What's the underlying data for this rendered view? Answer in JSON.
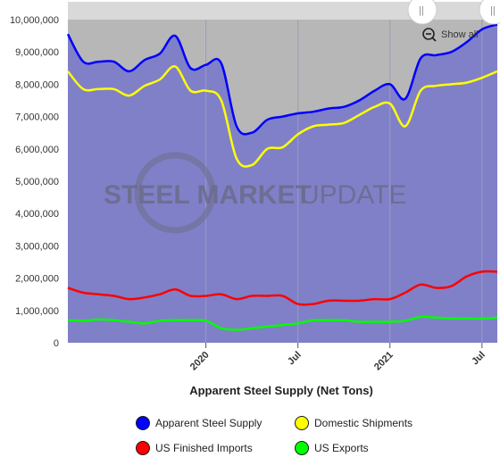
{
  "chart_data": {
    "type": "area",
    "title": "",
    "xlabel": "Apparent Steel Supply (Net Tons)",
    "ylabel": "",
    "ylim": [
      0,
      10000000
    ],
    "y_ticks": [
      "0",
      "1,000,000",
      "2,000,000",
      "3,000,000",
      "4,000,000",
      "5,000,000",
      "6,000,000",
      "7,000,000",
      "8,000,000",
      "9,000,000",
      "10,000,000"
    ],
    "x_ticks": [
      {
        "label": "2020",
        "date": "2020-01"
      },
      {
        "label": "Jul",
        "date": "2020-07"
      },
      {
        "label": "2021",
        "date": "2021-01"
      },
      {
        "label": "Jul",
        "date": "2021-07"
      }
    ],
    "x_range": [
      "2019-04",
      "2021-08"
    ],
    "x": [
      "2019-04",
      "2019-05",
      "2019-06",
      "2019-07",
      "2019-08",
      "2019-09",
      "2019-10",
      "2019-11",
      "2019-12",
      "2020-01",
      "2020-02",
      "2020-03",
      "2020-04",
      "2020-05",
      "2020-06",
      "2020-07",
      "2020-08",
      "2020-09",
      "2020-10",
      "2020-11",
      "2020-12",
      "2021-01",
      "2021-02",
      "2021-03",
      "2021-04",
      "2021-05",
      "2021-06",
      "2021-07",
      "2021-08"
    ],
    "series": [
      {
        "name": "Apparent Steel Supply",
        "color": "#0000ff",
        "values": [
          9550000,
          8700000,
          8700000,
          8700000,
          8400000,
          8750000,
          8950000,
          9500000,
          8500000,
          8600000,
          8650000,
          6700000,
          6500000,
          6900000,
          7000000,
          7100000,
          7150000,
          7250000,
          7300000,
          7500000,
          7800000,
          8000000,
          7550000,
          8800000,
          8900000,
          9000000,
          9300000,
          9700000,
          9850000
        ]
      },
      {
        "name": "Domestic Shipments",
        "color": "#ffff00",
        "values": [
          8400000,
          7850000,
          7850000,
          7850000,
          7650000,
          7950000,
          8150000,
          8550000,
          7800000,
          7800000,
          7500000,
          5700000,
          5500000,
          6000000,
          6050000,
          6450000,
          6700000,
          6750000,
          6800000,
          7050000,
          7300000,
          7400000,
          6700000,
          7800000,
          7950000,
          8000000,
          8050000,
          8200000,
          8400000
        ]
      },
      {
        "name": "US Finished Imports",
        "color": "#ff0000",
        "values": [
          1700000,
          1550000,
          1500000,
          1450000,
          1350000,
          1400000,
          1500000,
          1650000,
          1450000,
          1450000,
          1500000,
          1350000,
          1450000,
          1450000,
          1450000,
          1200000,
          1200000,
          1300000,
          1300000,
          1300000,
          1350000,
          1350000,
          1550000,
          1800000,
          1700000,
          1750000,
          2050000,
          2200000,
          2200000
        ]
      },
      {
        "name": "US Exports",
        "color": "#00ff00",
        "values": [
          700000,
          680000,
          720000,
          700000,
          650000,
          600000,
          680000,
          700000,
          700000,
          680000,
          450000,
          400000,
          450000,
          500000,
          550000,
          600000,
          700000,
          700000,
          700000,
          650000,
          650000,
          650000,
          680000,
          800000,
          780000,
          750000,
          750000,
          750000,
          780000
        ]
      }
    ],
    "legend_placement": "bottom",
    "grid": "vertical",
    "watermark": {
      "bold": "STEEL MARKET",
      "light": "UPDATE"
    }
  },
  "navigator": {
    "handle_left": "||",
    "handle_right": "||"
  },
  "controls": {
    "show_all_label": "Show all"
  },
  "colors": {
    "plot_background": "#8080c8",
    "top_area": "#b7b7b7",
    "marker_border": "#1a1a1a"
  }
}
